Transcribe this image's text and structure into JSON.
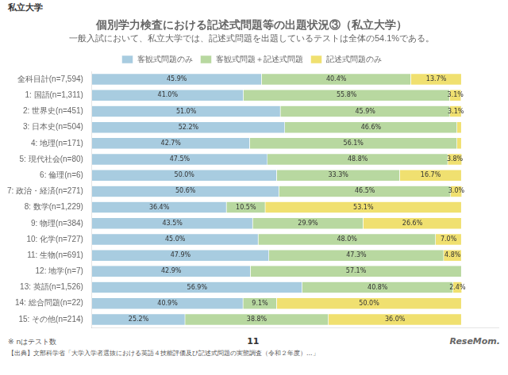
{
  "chart_data": {
    "type": "bar",
    "orientation": "horizontal",
    "stacked": true,
    "title": "個別学力検査における記述式問題等の出題状況③（私立大学）",
    "subtitle": "一般入試において、私立大学では、記述式問題を出題しているテストは全体の54.1%である。",
    "annotations": [
      "私立大学",
      "※ nはテスト数",
      "11",
      "ReseMom.",
      "【出典】文部科学省「大学入学者選抜における英語４技能評価及び記述式問題の実態調査（令和２年度）...」"
    ],
    "categories": [
      "全科目計(n=7,594)",
      "1: 国語(n=1,311)",
      "2: 世界史(n=451)",
      "3: 日本史(n=504)",
      "4: 地理(n=171)",
      "5: 現代社会(n=80)",
      "6: 倫理(n=6)",
      "7: 政治・経済(n=271)",
      "8: 数学(n=1,229)",
      "9: 物理(n=384)",
      "10: 化学(n=727)",
      "11: 生物(n=691)",
      "12: 地学(n=7)",
      "13: 英語(n=1,526)",
      "14: 総合問題(n=22)",
      "15: その他(n=214)"
    ],
    "series": [
      {
        "name": "客観式問題のみ",
        "color": "#a8cce0",
        "values": [
          45.9,
          41.0,
          51.0,
          52.2,
          42.7,
          47.5,
          50.0,
          50.6,
          36.4,
          43.5,
          45.0,
          47.9,
          42.9,
          56.9,
          40.9,
          25.2
        ],
        "value_labels": [
          "45.9%",
          "41.0%",
          "51.0%",
          "52.2%",
          "42.7%",
          "47.5%",
          "50.0%",
          "50.6%",
          "36.4%",
          "43.5%",
          "45.0%",
          "47.9%",
          "42.9%",
          "56.9%",
          "40.9%",
          "25.2%"
        ]
      },
      {
        "name": "客観式問題＋記述式問題",
        "color": "#b8d8a0",
        "values": [
          40.4,
          55.8,
          45.9,
          46.6,
          56.1,
          48.8,
          33.3,
          46.5,
          10.5,
          29.9,
          48.0,
          47.3,
          57.1,
          40.8,
          9.1,
          38.8
        ],
        "value_labels": [
          "40.4%",
          "55.8%",
          "45.9%",
          "46.6%",
          "56.1%",
          "48.8%",
          "33.3%",
          "46.5%",
          "10.5%",
          "29.9%",
          "48.0%",
          "47.3%",
          "57.1%",
          "40.8%",
          "9.1%",
          "38.8%"
        ]
      },
      {
        "name": "記述式問題のみ",
        "color": "#f0e070",
        "values": [
          13.7,
          3.1,
          3.1,
          1.2,
          1.2,
          3.8,
          16.7,
          3.0,
          53.1,
          26.6,
          7.0,
          4.8,
          0.0,
          2.4,
          50.0,
          36.0
        ],
        "value_labels": [
          "13.7%",
          "3.1%",
          "3.1%",
          null,
          null,
          "3.8%",
          "16.7%",
          "3.0%",
          "53.1%",
          "26.6%",
          "7.0%",
          "4.8%",
          null,
          "2.4%",
          "50.0%",
          "36.0%"
        ]
      }
    ],
    "xlim": [
      0,
      110
    ],
    "tick_labels": "y",
    "grid": false,
    "legend": "top",
    "data_labels": true
  }
}
